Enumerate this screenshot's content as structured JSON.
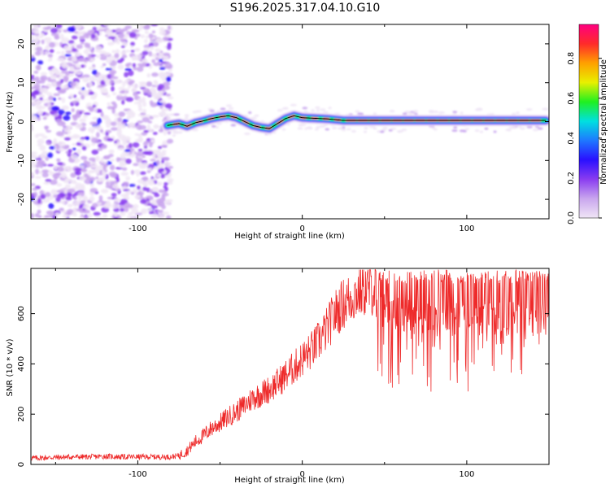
{
  "title": "S196.2025.317.04.10.G10",
  "colors": {
    "snr_line": "#ee2a2a",
    "track_line": "#000000",
    "colormap": [
      "#f0e6f6",
      "#c9a6ee",
      "#8a3cf0",
      "#2a10ff",
      "#1e78ff",
      "#00e0e0",
      "#20f020",
      "#e8f000",
      "#ffa000",
      "#ff2a2a",
      "#ff0080"
    ]
  },
  "chart_data": [
    {
      "type": "heatmap",
      "xlabel": "Height of straight line (km)",
      "ylabel": "Frequency (Hz)",
      "xlim": [
        -165,
        150
      ],
      "ylim": [
        -25,
        25
      ],
      "x_ticks": [
        -100,
        0,
        100
      ],
      "x_tick_labels": [
        "-100",
        "0",
        "100"
      ],
      "y_ticks": [
        -20,
        -10,
        0,
        10,
        20
      ],
      "y_tick_labels": [
        "-20",
        "-10",
        "0",
        "10",
        "20"
      ],
      "colorbar": {
        "label": "Normalized spectral amplitude",
        "range": [
          0,
          0.97
        ],
        "ticks": [
          0.0,
          0.2,
          0.4,
          0.6,
          0.8
        ],
        "tick_labels": [
          "0.0",
          "0.2",
          "0.4",
          "0.6",
          "0.8"
        ]
      },
      "noise_region_x": [
        -165,
        -80
      ],
      "peak_track": {
        "x": [
          -82,
          -75,
          -70,
          -65,
          -60,
          -55,
          -50,
          -45,
          -40,
          -35,
          -30,
          -25,
          -20,
          -15,
          -10,
          -5,
          0,
          5,
          10,
          15,
          20,
          25,
          30,
          40,
          50,
          60,
          70,
          80,
          90,
          100,
          110,
          120,
          130,
          140,
          148
        ],
        "y": [
          -1.0,
          -0.5,
          -1.2,
          -0.3,
          0.2,
          0.8,
          1.2,
          1.5,
          1.0,
          0.0,
          -1.0,
          -1.5,
          -1.8,
          -0.5,
          0.8,
          1.5,
          1.0,
          0.9,
          0.8,
          0.7,
          0.5,
          0.3,
          0.3,
          0.3,
          0.3,
          0.3,
          0.3,
          0.3,
          0.3,
          0.3,
          0.3,
          0.3,
          0.3,
          0.3,
          0.3
        ]
      }
    },
    {
      "type": "line",
      "xlabel": "Height of straight line (km)",
      "ylabel": "SNR (10 * v/v)",
      "xlim": [
        -165,
        150
      ],
      "ylim": [
        0,
        780
      ],
      "x_ticks": [
        -100,
        0,
        100
      ],
      "x_tick_labels": [
        "-100",
        "0",
        "100"
      ],
      "y_ticks": [
        0,
        200,
        400,
        600
      ],
      "y_tick_labels": [
        "0",
        "200",
        "400",
        "600"
      ],
      "series": [
        {
          "x": [
            -165,
            -150,
            -140,
            -130,
            -120,
            -110,
            -100,
            -90,
            -80,
            -75,
            -70,
            -65,
            -60,
            -55,
            -50,
            -45,
            -40,
            -35,
            -30,
            -25,
            -20,
            -15,
            -10,
            -5,
            0,
            5,
            10,
            15,
            20,
            25,
            30,
            35,
            40,
            45,
            50,
            60,
            70,
            80,
            90,
            100,
            110,
            120,
            130,
            140,
            150
          ],
          "values": [
            25,
            28,
            30,
            30,
            32,
            30,
            30,
            30,
            30,
            35,
            55,
            90,
            115,
            145,
            165,
            190,
            210,
            235,
            265,
            280,
            300,
            325,
            355,
            385,
            420,
            450,
            490,
            540,
            600,
            640,
            665,
            690,
            700,
            700,
            680,
            660,
            650,
            650,
            650,
            650,
            650,
            650,
            650,
            650,
            650
          ]
        }
      ]
    }
  ]
}
